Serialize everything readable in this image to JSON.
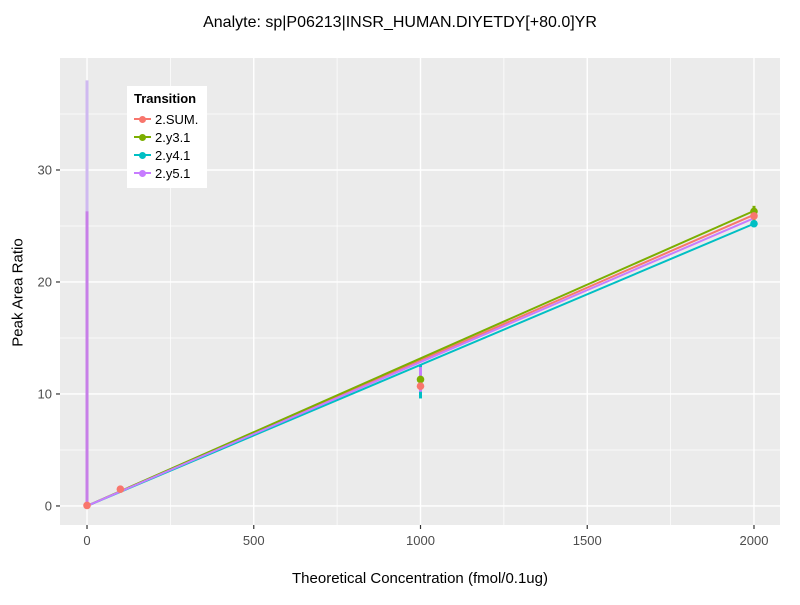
{
  "chart_data": {
    "type": "scatter",
    "title": "Analyte: sp|P06213|INSR_HUMAN.DIYETDY[+80.0]YR",
    "xlabel": "Theoretical Concentration (fmol/0.1ug)",
    "ylabel": "Peak Area Ratio",
    "xlim": [
      -81,
      2078
    ],
    "ylim": [
      -1.7,
      40
    ],
    "xticks": [
      0,
      500,
      1000,
      1500,
      2000
    ],
    "yticks": [
      0,
      10,
      20,
      30
    ],
    "xminor": [
      250,
      750,
      1250,
      1750
    ],
    "yminor": [
      5,
      15,
      25,
      35
    ],
    "grid": true,
    "panel_bg": "#EBEBEB",
    "grid_color": "#FFFFFF",
    "tick_label_color": "#4D4D4D",
    "legend_title": "Transition",
    "legend_position": "top-left-inside",
    "series": [
      {
        "name": "2.SUM.",
        "color": "#F8766D",
        "line": [
          [
            0,
            0
          ],
          [
            2000,
            26.0
          ]
        ],
        "points": [
          [
            0,
            0.05
          ],
          [
            100,
            1.5
          ],
          [
            1000,
            10.7
          ],
          [
            2000,
            25.9
          ]
        ],
        "errorbars": []
      },
      {
        "name": "2.y3.1",
        "color": "#7CAE00",
        "line": [
          [
            0,
            0
          ],
          [
            2000,
            26.35
          ]
        ],
        "points": [
          [
            1000,
            11.3
          ],
          [
            2000,
            26.3
          ]
        ],
        "errorbars": [
          {
            "x": 2000,
            "y0": 25.3,
            "y1": 26.8
          }
        ]
      },
      {
        "name": "2.y4.1",
        "color": "#00BFC4",
        "line": [
          [
            0,
            0
          ],
          [
            2000,
            25.2
          ]
        ],
        "points": [
          [
            2000,
            25.2
          ]
        ],
        "errorbars": [
          {
            "x": 1000,
            "y0": 9.6,
            "y1": 12.6
          }
        ]
      },
      {
        "name": "2.y5.1",
        "color": "#C77CFF",
        "line": [
          [
            0,
            0
          ],
          [
            2000,
            25.7
          ]
        ],
        "points": [],
        "errorbars": [
          {
            "x": 0,
            "y0": 0,
            "y1": 38.0,
            "color": "#CFB9F0"
          },
          {
            "x": 0,
            "y0": 0,
            "y1": 26.3,
            "color": "#C77FE8"
          },
          {
            "x": 1000,
            "y0": 10.2,
            "y1": 12.4
          }
        ]
      }
    ]
  }
}
